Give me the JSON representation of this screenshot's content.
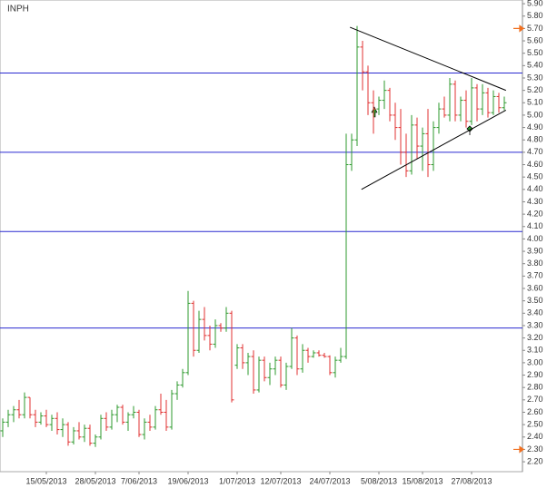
{
  "chart_data": {
    "type": "ohlc",
    "title": "INPH",
    "categories": [
      null,
      null,
      null,
      null,
      null,
      null,
      null,
      null,
      "15/05/2013",
      null,
      null,
      null,
      null,
      null,
      null,
      null,
      null,
      "28/05/2013",
      null,
      null,
      null,
      null,
      null,
      null,
      null,
      "7/06/2013",
      null,
      null,
      null,
      null,
      null,
      null,
      null,
      null,
      "19/06/2013",
      null,
      null,
      null,
      null,
      null,
      null,
      null,
      null,
      "1/07/2013",
      null,
      null,
      null,
      null,
      null,
      null,
      null,
      "12/07/2013",
      null,
      null,
      null,
      null,
      null,
      null,
      null,
      null,
      "24/07/2013",
      null,
      null,
      null,
      null,
      null,
      null,
      null,
      null,
      "5/08/2013",
      null,
      null,
      null,
      null,
      null,
      null,
      null,
      "15/08/2013",
      null,
      null,
      null,
      null,
      null,
      null,
      null,
      null,
      "27/08/2013",
      null,
      null,
      null,
      null,
      null,
      null
    ],
    "open": [
      2.45,
      2.52,
      2.58,
      2.62,
      2.58,
      2.72,
      2.58,
      2.52,
      2.57,
      2.5,
      2.55,
      2.46,
      2.5,
      2.36,
      2.45,
      2.4,
      2.47,
      2.35,
      2.4,
      2.55,
      2.48,
      2.58,
      2.64,
      2.52,
      2.58,
      2.6,
      2.42,
      2.52,
      2.48,
      2.62,
      2.6,
      2.48,
      2.75,
      2.82,
      2.92,
      3.48,
      3.1,
      3.35,
      3.22,
      3.15,
      3.3,
      3.28,
      3.4,
      2.98,
      3.12,
      3.0,
      3.05,
      2.78,
      3.02,
      2.88,
      2.95,
      3.02,
      2.82,
      2.97,
      3.2,
      2.95,
      3.1,
      3.05,
      3.08,
      3.06,
      3.05,
      2.92,
      3.02,
      3.05,
      4.6,
      4.8,
      5.55,
      5.35,
      5.1,
      5.05,
      5.12,
      5.2,
      5.0,
      4.9,
      4.7,
      4.55,
      4.92,
      4.75,
      4.85,
      4.6,
      4.9,
      5.05,
      5.0,
      5.25,
      5.0,
      5.12,
      4.95,
      5.22,
      5.05,
      5.18,
      5.02,
      5.15,
      5.06
    ],
    "high": [
      2.55,
      2.62,
      2.65,
      2.7,
      2.76,
      2.72,
      2.62,
      2.6,
      2.62,
      2.58,
      2.6,
      2.55,
      2.52,
      2.48,
      2.52,
      2.5,
      2.5,
      2.42,
      2.58,
      2.6,
      2.62,
      2.66,
      2.66,
      2.6,
      2.65,
      2.62,
      2.55,
      2.58,
      2.65,
      2.75,
      2.7,
      2.78,
      2.85,
      2.95,
      3.58,
      3.5,
      3.42,
      3.45,
      3.3,
      3.35,
      3.32,
      3.45,
      3.42,
      3.15,
      3.15,
      3.08,
      3.1,
      3.05,
      3.05,
      3.0,
      3.05,
      3.05,
      3.0,
      3.28,
      3.22,
      3.15,
      3.12,
      3.1,
      3.1,
      3.08,
      3.06,
      3.05,
      3.12,
      4.85,
      4.85,
      5.72,
      5.6,
      5.4,
      5.2,
      5.15,
      5.28,
      5.22,
      5.1,
      5.05,
      4.85,
      5.0,
      4.98,
      4.9,
      5.05,
      4.95,
      5.1,
      5.15,
      5.3,
      5.28,
      5.15,
      5.2,
      5.3,
      5.25,
      5.25,
      5.22,
      5.2,
      5.18,
      5.15
    ],
    "low": [
      2.4,
      2.48,
      2.52,
      2.55,
      2.55,
      2.55,
      2.48,
      2.5,
      2.48,
      2.45,
      2.42,
      2.4,
      2.33,
      2.34,
      2.38,
      2.36,
      2.33,
      2.32,
      2.38,
      2.45,
      2.46,
      2.52,
      2.5,
      2.45,
      2.55,
      2.4,
      2.38,
      2.45,
      2.46,
      2.58,
      2.45,
      2.46,
      2.7,
      2.8,
      2.9,
      3.05,
      3.08,
      3.18,
      3.1,
      3.12,
      3.25,
      3.25,
      2.68,
      2.95,
      2.95,
      2.9,
      2.75,
      2.76,
      2.85,
      2.82,
      2.9,
      2.8,
      2.78,
      2.95,
      2.9,
      2.92,
      3.0,
      3.04,
      3.05,
      3.04,
      2.9,
      2.88,
      3.0,
      3.03,
      4.55,
      4.75,
      5.2,
      5.0,
      4.85,
      5.0,
      5.05,
      4.95,
      4.8,
      4.6,
      4.5,
      4.52,
      4.65,
      4.55,
      4.5,
      4.55,
      4.85,
      4.98,
      4.95,
      4.95,
      4.95,
      4.9,
      4.92,
      4.95,
      5.0,
      4.98,
      5.0,
      5.02,
      5.04
    ],
    "close": [
      2.52,
      2.58,
      2.62,
      2.58,
      2.72,
      2.58,
      2.52,
      2.57,
      2.5,
      2.55,
      2.46,
      2.5,
      2.36,
      2.45,
      2.4,
      2.47,
      2.35,
      2.4,
      2.55,
      2.48,
      2.58,
      2.64,
      2.52,
      2.58,
      2.6,
      2.42,
      2.52,
      2.48,
      2.62,
      2.6,
      2.48,
      2.75,
      2.82,
      2.92,
      3.48,
      3.1,
      3.35,
      3.22,
      3.15,
      3.3,
      3.28,
      3.4,
      2.7,
      3.12,
      3.0,
      3.05,
      2.78,
      3.02,
      2.88,
      2.95,
      3.02,
      2.82,
      2.97,
      3.2,
      2.95,
      3.1,
      3.05,
      3.08,
      3.06,
      3.05,
      2.92,
      3.02,
      3.05,
      4.6,
      4.8,
      5.55,
      5.35,
      5.1,
      5.05,
      5.12,
      5.2,
      5.0,
      4.9,
      4.7,
      4.55,
      4.92,
      4.75,
      4.85,
      4.6,
      4.9,
      5.05,
      5.0,
      5.25,
      5.0,
      5.12,
      4.95,
      5.22,
      5.05,
      5.18,
      5.02,
      5.15,
      5.06,
      5.1
    ],
    "up_color": "#2e9a2e",
    "down_color": "#e03030",
    "ylim": [
      2.12,
      5.93
    ],
    "yticks": [
      {
        "value": 2.2,
        "label": "2.20"
      },
      {
        "value": 2.3,
        "label": "2.30"
      },
      {
        "value": 2.4,
        "label": "2.40"
      },
      {
        "value": 2.5,
        "label": "2.50"
      },
      {
        "value": 2.6,
        "label": "2.60"
      },
      {
        "value": 2.7,
        "label": "2.70"
      },
      {
        "value": 2.8,
        "label": "2.80"
      },
      {
        "value": 2.9,
        "label": "2.90"
      },
      {
        "value": 3.0,
        "label": "3.00"
      },
      {
        "value": 3.1,
        "label": "3.10"
      },
      {
        "value": 3.2,
        "label": "3.20"
      },
      {
        "value": 3.3,
        "label": "3.30"
      },
      {
        "value": 3.4,
        "label": "3.40"
      },
      {
        "value": 3.5,
        "label": "3.50"
      },
      {
        "value": 3.6,
        "label": "3.60"
      },
      {
        "value": 3.7,
        "label": "3.70"
      },
      {
        "value": 3.8,
        "label": "3.80"
      },
      {
        "value": 3.9,
        "label": "3.90"
      },
      {
        "value": 4.0,
        "label": "4.00"
      },
      {
        "value": 4.1,
        "label": "4.10"
      },
      {
        "value": 4.2,
        "label": "4.20"
      },
      {
        "value": 4.3,
        "label": "4.30"
      },
      {
        "value": 4.4,
        "label": "4.40"
      },
      {
        "value": 4.5,
        "label": "4.50"
      },
      {
        "value": 4.6,
        "label": "4.60"
      },
      {
        "value": 4.7,
        "label": "4.70"
      },
      {
        "value": 4.8,
        "label": "4.80"
      },
      {
        "value": 4.9,
        "label": "4.90"
      },
      {
        "value": 5.0,
        "label": "5.00"
      },
      {
        "value": 5.1,
        "label": "5.10"
      },
      {
        "value": 5.2,
        "label": "5.20"
      },
      {
        "value": 5.3,
        "label": "5.30"
      },
      {
        "value": 5.4,
        "label": "5.40"
      },
      {
        "value": 5.5,
        "label": "5.50"
      },
      {
        "value": 5.6,
        "label": "5.60"
      },
      {
        "value": 5.7,
        "label": "5.70"
      },
      {
        "value": 5.8,
        "label": "5.80"
      },
      {
        "value": 5.9,
        "label": "5.90"
      }
    ],
    "hlines": [
      5.34,
      4.7,
      4.06,
      3.28
    ],
    "hline_color": "#2a2ad0",
    "markers": [
      5.7,
      2.3
    ],
    "marker_color": "#f07020",
    "trendlines": [
      {
        "from": [
          63.7,
          5.71
        ],
        "to": [
          92.3,
          5.2
        ]
      },
      {
        "from": [
          65.8,
          4.4
        ],
        "to": [
          92.3,
          5.04
        ]
      }
    ]
  }
}
